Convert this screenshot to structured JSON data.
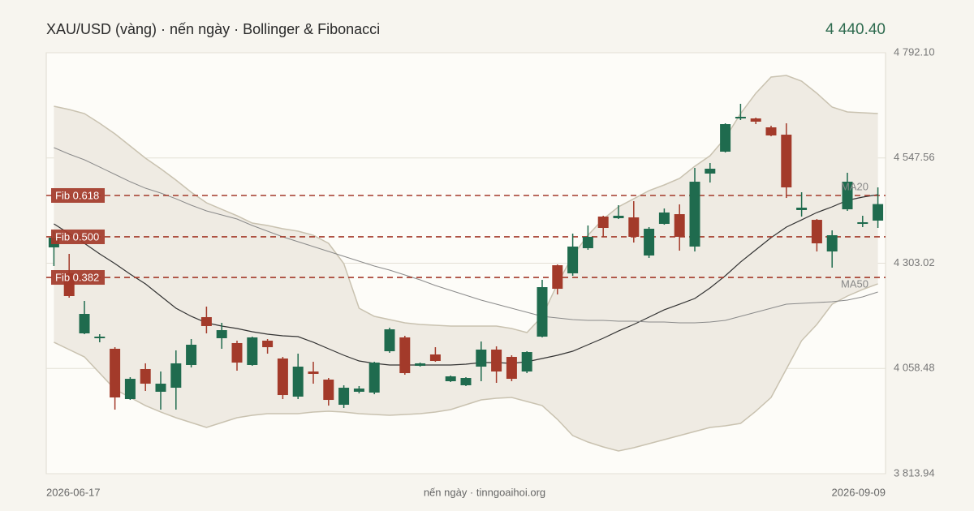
{
  "chart_data": {
    "type": "candlestick",
    "title": "XAU/USD (vàng) · nến ngày · Bollinger & Fibonacci",
    "last_price": "4 440.40",
    "footer_note": "nến ngày · tinngoaihoi.org",
    "categories": [
      "2026-06-17",
      null,
      null,
      null,
      null,
      null,
      null,
      null,
      null,
      null,
      null,
      null,
      null,
      null,
      null,
      null,
      null,
      null,
      null,
      null,
      null,
      null,
      null,
      null,
      null,
      null,
      null,
      null,
      null,
      null,
      null,
      null,
      null,
      null,
      null,
      null,
      null,
      null,
      null,
      null,
      null,
      null,
      null,
      null,
      null,
      null,
      null,
      null,
      null,
      null,
      null,
      null,
      null,
      null,
      "2026-09-09"
    ],
    "open": [
      4339.8,
      4279.5,
      4140.0,
      4128.7,
      4104.2,
      3987.3,
      4057.1,
      4004.3,
      4013.7,
      4066.5,
      4177.7,
      4128.7,
      4117.4,
      4066.5,
      4123.0,
      4081.6,
      3993.0,
      4051.4,
      4032.6,
      3974.1,
      4004.3,
      4002.4,
      4098.5,
      4130.6,
      4064.6,
      4091.0,
      4028.8,
      4019.4,
      4062.7,
      4102.3,
      4085.3,
      4051.4,
      4132.4,
      4298.3,
      4279.5,
      4337.9,
      4411.4,
      4407.6,
      4409.5,
      4320.9,
      4394.4,
      4417.0,
      4341.7,
      4511.3,
      4562.2,
      4639.4,
      4639.4,
      4618.7,
      4601.7,
      4426.5,
      4403.8,
      4330.3,
      4428.3,
      4394.4,
      4402.0
    ],
    "high": [
      4377.5,
      4324.7,
      4215.4,
      4138.1,
      4107.9,
      4038.2,
      4070.3,
      4051.4,
      4100.4,
      4126.8,
      4202.2,
      4164.5,
      4123.0,
      4132.4,
      4126.8,
      4085.3,
      4092.9,
      4074.0,
      4036.3,
      4019.4,
      4017.5,
      4074.0,
      4153.2,
      4134.3,
      4072.1,
      4107.9,
      4042.0,
      4038.2,
      4121.1,
      4109.8,
      4089.1,
      4098.5,
      4264.4,
      4300.2,
      4371.8,
      4390.7,
      4413.3,
      4437.8,
      4447.2,
      4386.9,
      4430.2,
      4439.7,
      4524.5,
      4535.8,
      4628.1,
      4673.4,
      4641.3,
      4622.5,
      4628.1,
      4467.9,
      4405.7,
      4379.3,
      4513.2,
      4413.3,
      4479.2
    ],
    "low": [
      4296.4,
      4222.9,
      4138.1,
      4119.3,
      3962.8,
      3985.4,
      4006.2,
      3962.8,
      3962.8,
      4060.8,
      4140.0,
      4104.2,
      4053.3,
      4064.6,
      4092.9,
      3987.3,
      3987.3,
      4023.1,
      3972.2,
      3966.6,
      4000.5,
      3998.6,
      4094.8,
      4043.9,
      4062.7,
      4074.0,
      4026.9,
      4017.5,
      4028.8,
      4025.0,
      4028.8,
      4047.6,
      4130.6,
      4230.5,
      4273.8,
      4334.1,
      4364.3,
      4405.7,
      4351.1,
      4315.3,
      4392.5,
      4332.2,
      4330.3,
      4490.5,
      4560.3,
      4635.7,
      4626.2,
      4598.0,
      4454.7,
      4411.4,
      4330.3,
      4292.7,
      4424.6,
      4386.9,
      4385.0
    ],
    "close": [
      4362.4,
      4226.7,
      4185.2,
      4132.4,
      3991.1,
      4034.4,
      4023.1,
      4023.1,
      4070.3,
      4113.6,
      4157.0,
      4147.5,
      4072.1,
      4130.6,
      4107.9,
      3996.7,
      4062.7,
      4045.8,
      3985.4,
      4013.7,
      4011.8,
      4072.1,
      4149.4,
      4047.6,
      4070.3,
      4075.9,
      4040.1,
      4036.3,
      4102.3,
      4051.4,
      4034.4,
      4096.6,
      4247.4,
      4243.6,
      4341.7,
      4364.3,
      4385.0,
      4413.3,
      4364.3,
      4383.1,
      4420.8,
      4364.3,
      4492.4,
      4522.6,
      4626.2,
      4643.2,
      4631.9,
      4599.9,
      4479.2,
      4432.1,
      4349.2,
      4368.0,
      4492.4,
      4398.2,
      4440.4
    ],
    "up_color": "#1f6b4e",
    "down_color": "#a33a2a",
    "bollinger": {
      "upper": [
        4667.7,
        4660.2,
        4650.7,
        4628.1,
        4603.6,
        4575.4,
        4547.1,
        4522.6,
        4496.2,
        4467.9,
        4443.4,
        4428.3,
        4413.3,
        4396.3,
        4390.7,
        4383.1,
        4377.5,
        4368.0,
        4349.2,
        4302.1,
        4198.4,
        4179.6,
        4172.0,
        4164.5,
        4160.7,
        4158.8,
        4157.0,
        4157.0,
        4157.0,
        4157.0,
        4151.3,
        4141.9,
        4179.6,
        4255.0,
        4320.9,
        4368.0,
        4405.7,
        4434.0,
        4452.8,
        4471.7,
        4484.9,
        4500.0,
        4528.2,
        4552.7,
        4594.2,
        4650.7,
        4697.9,
        4735.6,
        4739.3,
        4726.1,
        4697.9,
        4665.8,
        4654.5,
        4652.6,
        4650.7
      ],
      "lower": [
        4119.3,
        4102.3,
        4085.3,
        4047.6,
        4009.9,
        3991.1,
        3972.2,
        3957.2,
        3944.0,
        3932.7,
        3921.4,
        3932.7,
        3944.0,
        3949.6,
        3953.4,
        3953.4,
        3953.4,
        3957.2,
        3959.1,
        3957.2,
        3953.4,
        3951.5,
        3949.6,
        3951.5,
        3953.4,
        3957.2,
        3962.8,
        3974.1,
        3985.4,
        3989.2,
        3991.1,
        3981.7,
        3972.2,
        3940.2,
        3902.5,
        3887.4,
        3876.1,
        3866.7,
        3874.2,
        3883.7,
        3893.1,
        3902.5,
        3911.9,
        3921.4,
        3925.1,
        3930.8,
        3959.1,
        3991.1,
        4057.1,
        4123.0,
        4160.7,
        4207.8,
        4226.7,
        4241.8,
        4255.0
      ],
      "color": "#c9c2b0",
      "fill": "#efebe3"
    },
    "series": [
      {
        "name": "MA20",
        "color": "#333333",
        "values": [
          4394.4,
          4371.8,
          4349.2,
          4324.7,
          4302.1,
          4277.6,
          4255.0,
          4226.7,
          4198.4,
          4179.6,
          4164.5,
          4157.0,
          4151.3,
          4143.8,
          4138.1,
          4134.3,
          4132.4,
          4119.3,
          4104.2,
          4089.1,
          4075.9,
          4070.3,
          4066.5,
          4066.5,
          4066.5,
          4066.5,
          4066.5,
          4068.4,
          4072.1,
          4072.1,
          4070.3,
          4074.0,
          4081.6,
          4089.1,
          4098.5,
          4113.6,
          4128.7,
          4145.6,
          4160.7,
          4177.7,
          4194.7,
          4207.8,
          4221.0,
          4245.5,
          4273.8,
          4305.8,
          4334.1,
          4362.4,
          4386.9,
          4403.8,
          4420.8,
          4434.0,
          4449.1,
          4456.6,
          4462.3
        ]
      },
      {
        "name": "MA50",
        "color": "#8a8a8a",
        "values": [
          4571.6,
          4556.5,
          4543.3,
          4526.4,
          4509.4,
          4492.4,
          4477.3,
          4466.0,
          4452.8,
          4437.8,
          4424.6,
          4415.2,
          4405.7,
          4390.7,
          4377.5,
          4364.3,
          4353.0,
          4341.7,
          4330.3,
          4319.0,
          4307.7,
          4296.4,
          4287.0,
          4275.7,
          4264.4,
          4251.2,
          4239.9,
          4228.6,
          4217.3,
          4207.8,
          4198.4,
          4189.0,
          4179.6,
          4175.8,
          4172.0,
          4170.1,
          4170.1,
          4168.3,
          4168.3,
          4166.4,
          4166.4,
          4164.5,
          4164.5,
          4166.4,
          4170.1,
          4179.6,
          4189.0,
          4198.4,
          4207.8,
          4209.7,
          4211.6,
          4213.5,
          4217.3,
          4224.8,
          4236.1
        ]
      }
    ],
    "fib_levels": [
      {
        "label": "Fib 0.618",
        "value": 4460.4
      },
      {
        "label": "Fib 0.500",
        "value": 4364.3
      },
      {
        "label": "Fib 0.382",
        "value": 4270.0
      }
    ],
    "fib_color": "#a33a2a",
    "ylim": [
      3813.94,
      4792.1
    ],
    "yticks": [
      {
        "value": 3813.94,
        "label": "3 813.94"
      },
      {
        "value": 4058.48,
        "label": "4 058.48"
      },
      {
        "value": 4303.02,
        "label": "4 303.02"
      },
      {
        "value": 4547.56,
        "label": "4 547.56"
      },
      {
        "value": 4792.1,
        "label": "4 792.10"
      }
    ],
    "grid": true
  }
}
